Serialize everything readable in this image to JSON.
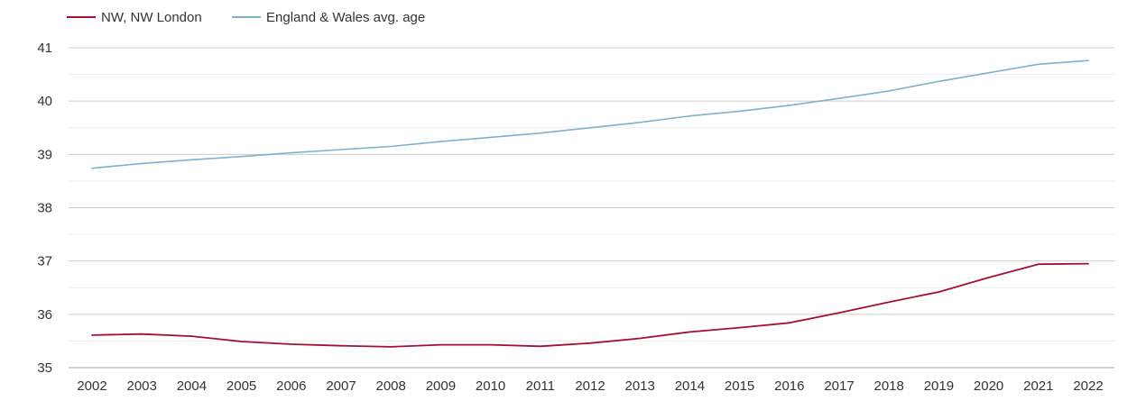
{
  "chart_data": {
    "type": "line",
    "title": "",
    "xlabel": "",
    "ylabel": "",
    "categories": [
      "2002",
      "2003",
      "2004",
      "2005",
      "2006",
      "2007",
      "2008",
      "2009",
      "2010",
      "2011",
      "2012",
      "2013",
      "2014",
      "2015",
      "2016",
      "2017",
      "2018",
      "2019",
      "2020",
      "2021",
      "2022"
    ],
    "ylim": [
      35,
      41
    ],
    "yticks": [
      "35",
      "36",
      "37",
      "38",
      "39",
      "40",
      "41"
    ],
    "grid": true,
    "minor_grid": true,
    "legend_position": "top-left",
    "series": [
      {
        "name": "NW, NW London",
        "color": "#a50f33",
        "values": [
          35.61,
          35.63,
          35.59,
          35.49,
          35.44,
          35.41,
          35.39,
          35.43,
          35.43,
          35.4,
          35.46,
          35.55,
          35.67,
          35.75,
          35.84,
          36.03,
          36.23,
          36.42,
          36.69,
          36.94,
          36.95
        ]
      },
      {
        "name": "England & Wales avg. age",
        "color": "#7eb1cf",
        "values": [
          38.74,
          38.83,
          38.9,
          38.96,
          39.03,
          39.09,
          39.15,
          39.24,
          39.32,
          39.4,
          39.5,
          39.6,
          39.72,
          39.81,
          39.92,
          40.05,
          40.19,
          40.37,
          40.53,
          40.69,
          40.76
        ]
      }
    ]
  }
}
